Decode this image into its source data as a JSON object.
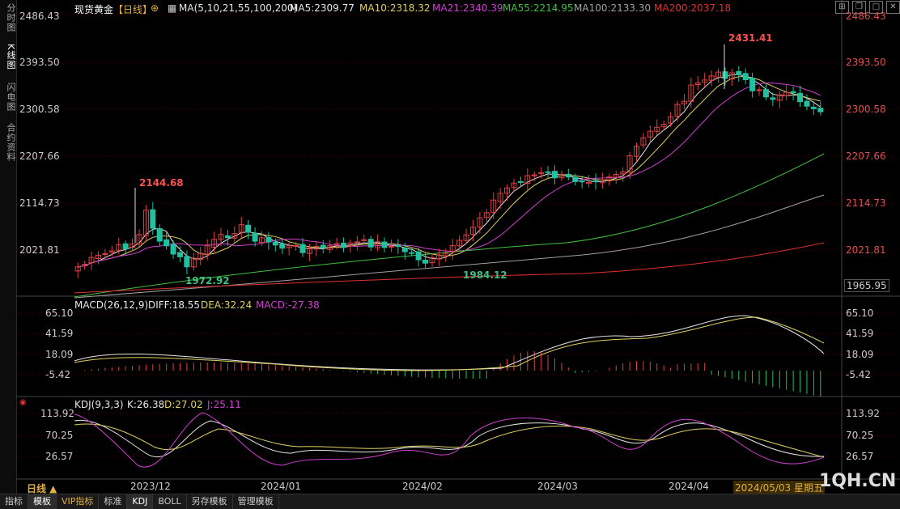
{
  "sidebar": {
    "tabs": [
      "分时图",
      "K线图",
      "闪电图",
      "合约资料"
    ]
  },
  "header": {
    "name": "现货黄金",
    "period_tag": "【日线】",
    "ma_params": "MA(5,10,21,55,100,200)",
    "ma": [
      {
        "label": "MA5:2309.77",
        "color": "#e6e6e6"
      },
      {
        "label": "MA10:2318.32",
        "color": "#e0d060"
      },
      {
        "label": "MA21:2340.39",
        "color": "#d040d0"
      },
      {
        "label": "MA55:2214.95",
        "color": "#40c040"
      },
      {
        "label": "MA100:2133.30",
        "color": "#a0a0a0"
      },
      {
        "label": "MA200:2037.18",
        "color": "#e03030"
      }
    ]
  },
  "price_axis": {
    "ticks": [
      "2486.43",
      "2393.50",
      "2300.58",
      "2207.66",
      "2114.73",
      "2021.81"
    ],
    "low_tick": "1965.95"
  },
  "annotations": {
    "high": "2431.41",
    "high_dec": "2144.68",
    "low_dec": "1972.92",
    "low_feb": "1984.12"
  },
  "macd": {
    "title": "MACD(26,12,9)",
    "diff": "DIFF:18.55",
    "dea": "DEA:32.24",
    "macd": "MACD:-27.38",
    "ticks": [
      "65.10",
      "41.59",
      "18.09",
      "-5.42"
    ]
  },
  "kdj": {
    "title": "KDJ(9,3,3)",
    "k": "K:26.38",
    "d": "D:27.02",
    "j": "J:25.11",
    "ticks": [
      "113.92",
      "70.25",
      "26.57"
    ]
  },
  "date_axis": {
    "period_label": "日线 ▲",
    "dates": [
      "2023/12",
      "2024/01",
      "2024/02",
      "2024/03",
      "2024/04"
    ],
    "current": "2024/05/03 星期五"
  },
  "watermark": "1QH.CN",
  "bottom_tabs": [
    "指标",
    "模板",
    "VIP指标",
    "标准",
    "KDJ",
    "BOLL",
    "另存模板",
    "管理模板"
  ],
  "colors": {
    "up": "#e04040",
    "down": "#20c0a0",
    "background": "#000000"
  }
}
